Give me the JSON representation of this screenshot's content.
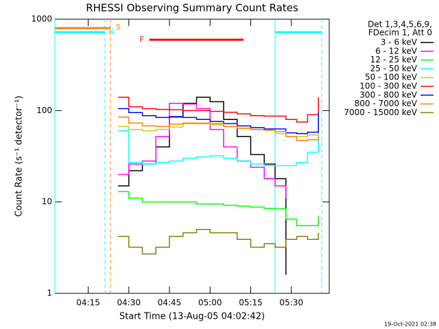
{
  "chart_data": {
    "type": "line",
    "title": "RHESSI Observing Summary Count Rates",
    "x_label": "Start Time (13-Aug-05 04:02:42)",
    "y_label": "Count Rate (s⁻¹ detector⁻¹)",
    "legend_header": [
      "Det 1,3,4,5,6,9,",
      "FDecim 1, Att 0"
    ],
    "footer": "19-Oct-2021 02:38",
    "log_y": true,
    "xlim": [
      2.7,
      104
    ],
    "xticks": [
      {
        "value": 15,
        "label": "04:15"
      },
      {
        "value": 30,
        "label": "04:30"
      },
      {
        "value": 45,
        "label": "04:45"
      },
      {
        "value": 60,
        "label": "05:00"
      },
      {
        "value": 75,
        "label": "05:15"
      },
      {
        "value": 90,
        "label": "05:30"
      }
    ],
    "ylim": [
      1,
      1000
    ],
    "yticks": [
      1,
      10,
      100,
      1000
    ],
    "x": [
      26,
      30,
      35,
      40,
      45,
      50,
      55,
      60,
      65,
      70,
      75,
      80,
      84,
      88,
      92,
      96,
      100
    ],
    "series": [
      {
        "name": "3 - 6 keV",
        "color": "#000000",
        "values": [
          15,
          22,
          26,
          40,
          85,
          120,
          140,
          125,
          80,
          52,
          33,
          26,
          18,
          1.6,
          null,
          null,
          null
        ]
      },
      {
        "name": "6 - 12 keV",
        "color": "#ff00ff",
        "values": [
          20,
          26,
          28,
          52,
          120,
          118,
          105,
          62,
          40,
          28,
          24,
          18,
          15,
          11,
          null,
          null,
          null
        ]
      },
      {
        "name": "12 - 25 keV",
        "color": "#00ff00",
        "values": [
          13,
          11,
          10,
          10,
          10,
          10,
          9.5,
          9.5,
          9.2,
          9,
          8.8,
          8.5,
          8.4,
          6.5,
          5.5,
          5.5,
          7
        ]
      },
      {
        "name": "25 - 50 keV",
        "color": "#00ffff",
        "values": [
          60,
          27,
          26,
          27,
          28,
          30,
          31,
          32,
          30,
          28,
          26,
          25,
          25,
          25,
          27,
          35,
          80
        ]
      },
      {
        "name": "50 - 100 keV",
        "color": "#cccc00",
        "values": [
          67,
          62,
          60,
          62,
          66,
          72,
          73,
          70,
          67,
          64,
          62,
          62,
          56,
          52,
          52,
          54,
          100
        ]
      },
      {
        "name": "100 - 300 keV",
        "color": "#ff0000",
        "values": [
          140,
          110,
          105,
          103,
          102,
          100,
          100,
          98,
          96,
          92,
          88,
          87,
          87,
          80,
          75,
          90,
          140
        ]
      },
      {
        "name": "300 - 800 keV",
        "color": "#0000ff",
        "values": [
          105,
          95,
          88,
          84,
          86,
          84,
          80,
          76,
          72,
          68,
          65,
          63,
          63,
          57,
          56,
          58,
          95
        ]
      },
      {
        "name": "800 - 7000 keV",
        "color": "#ff8000",
        "values": [
          85,
          73,
          68,
          67,
          71,
          73,
          72,
          72,
          67,
          64,
          62,
          61,
          59,
          52,
          47,
          48,
          52
        ]
      },
      {
        "name": "7000 - 15000 keV",
        "color": "#808000",
        "values": [
          4.2,
          3.2,
          2.7,
          3.2,
          4.2,
          4.6,
          5,
          4.6,
          4.6,
          3.9,
          3.2,
          3.5,
          3.2,
          3.9,
          4.2,
          3.9,
          4.6
        ]
      }
    ],
    "flags": [
      {
        "label": "S",
        "color": "#ff8000",
        "x": [
          2.7,
          23.2
        ]
      },
      {
        "label": "N",
        "color": "#00ffff",
        "x": [
          2.7,
          21.2
        ]
      },
      {
        "color": "#00ffff",
        "x": [
          84,
          101.2
        ]
      },
      {
        "label": "F",
        "color": "#ff0000",
        "x": [
          37.6,
          72.4
        ]
      }
    ],
    "vlines": [
      {
        "x": 2.7,
        "color": "#00ffff",
        "dashed": false
      },
      {
        "x": 21.2,
        "color": "#00ffff",
        "dashed": true
      },
      {
        "x": 23.2,
        "color": "#ff8000",
        "dashed": true
      },
      {
        "x": 84,
        "color": "#00ffff",
        "dashed": false
      },
      {
        "x": 101.2,
        "color": "#00ffff",
        "dashed": true
      }
    ]
  }
}
